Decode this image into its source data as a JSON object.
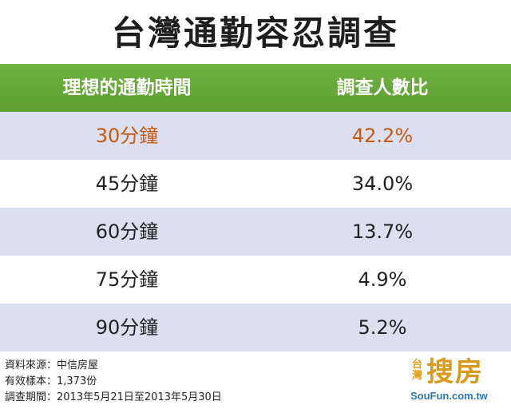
{
  "title": "台灣通勤容忍調查",
  "chart_data": {
    "type": "table",
    "title": "台灣通勤容忍調查",
    "columns": [
      "理想的通勤時間",
      "調查人數比"
    ],
    "rows": [
      {
        "time": "30分鐘",
        "share": "42.2%"
      },
      {
        "time": "45分鐘",
        "share": "34.0%"
      },
      {
        "time": "60分鐘",
        "share": "13.7%"
      },
      {
        "time": "75分鐘",
        "share": "4.9%"
      },
      {
        "time": "90分鐘",
        "share": "5.2%"
      }
    ],
    "values": [
      42.2,
      34.0,
      13.7,
      4.9,
      5.2
    ],
    "highlight_color": "#c55a11",
    "header_color": "#67aa3a",
    "shade_color": "#dcdff0"
  },
  "notes": [
    "資料來源：中信房屋",
    "有效樣本：1,373份",
    "調查期間：2013年5月21日至2013年5月30日"
  ],
  "logo": {
    "small": "台灣",
    "big": "搜房",
    "url": "SouFun.com.tw"
  }
}
